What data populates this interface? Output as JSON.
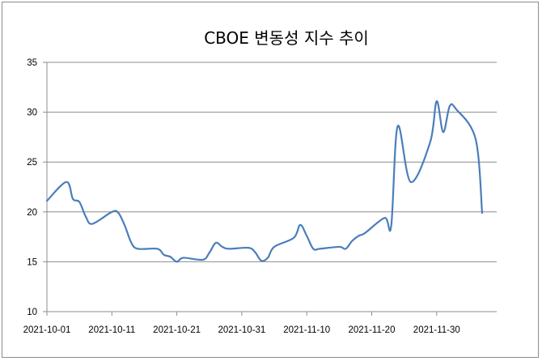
{
  "chart_data": {
    "type": "line",
    "title": "CBOE  변동성 지수 추이",
    "xlabel": "",
    "ylabel": "",
    "ylim": [
      10,
      35
    ],
    "yticks": [
      "10",
      "15",
      "20",
      "25",
      "30",
      "35"
    ],
    "xticks": [
      "2021-10-01",
      "2021-10-11",
      "2021-10-21",
      "2021-10-31",
      "2021-11-10",
      "2021-11-20",
      "2021-11-30"
    ],
    "grid": true,
    "legend": "none",
    "line_color": "#4a7ebb",
    "series": [
      {
        "x": [
          "2021-10-01",
          "2021-10-04",
          "2021-10-05",
          "2021-10-06",
          "2021-10-07",
          "2021-10-08",
          "2021-10-11",
          "2021-10-12",
          "2021-10-13",
          "2021-10-14",
          "2021-10-15",
          "2021-10-18",
          "2021-10-19",
          "2021-10-20",
          "2021-10-21",
          "2021-10-22",
          "2021-10-25",
          "2021-10-26",
          "2021-10-27",
          "2021-10-28",
          "2021-10-29",
          "2021-11-01",
          "2021-11-02",
          "2021-11-03",
          "2021-11-04",
          "2021-11-05",
          "2021-11-08",
          "2021-11-09",
          "2021-11-10",
          "2021-11-11",
          "2021-11-12",
          "2021-11-15",
          "2021-11-16",
          "2021-11-17",
          "2021-11-18",
          "2021-11-19",
          "2021-11-22",
          "2021-11-23",
          "2021-11-24",
          "2021-11-26",
          "2021-11-29",
          "2021-11-30",
          "2021-12-01",
          "2021-12-02",
          "2021-12-03",
          "2021-12-06",
          "2021-12-07"
        ],
        "values": [
          21.1,
          23.0,
          21.3,
          21.0,
          19.5,
          18.8,
          20.0,
          19.9,
          18.6,
          16.9,
          16.3,
          16.3,
          15.7,
          15.5,
          15.0,
          15.4,
          15.2,
          15.9,
          16.9,
          16.5,
          16.3,
          16.4,
          16.0,
          15.1,
          15.4,
          16.5,
          17.4,
          18.7,
          17.6,
          16.3,
          16.3,
          16.5,
          16.3,
          17.1,
          17.6,
          17.9,
          19.4,
          18.6,
          28.6,
          23.0,
          27.0,
          31.1,
          28.0,
          30.6,
          30.3,
          27.3,
          19.9
        ]
      }
    ]
  }
}
